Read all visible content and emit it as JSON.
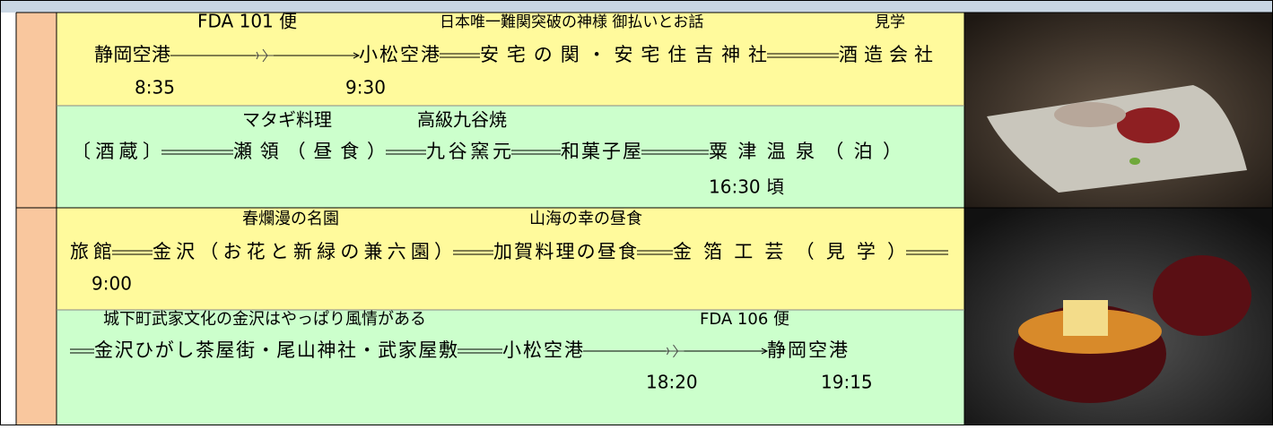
{
  "days": [
    {
      "sections": [
        {
          "notes": [
            "FDA 101 便",
            "日本唯一難関突破の神様 御払いとお話",
            "見学"
          ],
          "route": [
            "静岡空港",
            "小松空港",
            "安宅の関・安宅住吉神社",
            "酒造会社"
          ],
          "times": [
            "8:35",
            "9:30"
          ]
        },
        {
          "notes": [
            "マタギ料理",
            "高級九谷焼"
          ],
          "route": [
            "〔酒蔵〕",
            "瀬領（昼食）",
            "九谷窯元",
            "和菓子屋",
            "粟津温泉（泊）"
          ],
          "times": [
            "16:30 頃"
          ]
        }
      ]
    },
    {
      "sections": [
        {
          "notes": [
            "春爛漫の名園",
            "山海の幸の昼食"
          ],
          "route": [
            "旅館",
            "金沢（お花と新緑の兼六園）",
            "加賀料理の昼食",
            "金箔工芸（見学）"
          ],
          "times": [
            "9:00"
          ]
        },
        {
          "notes": [
            "城下町武家文化の金沢はやっぱり風情がある",
            "FDA 106 便"
          ],
          "route": [
            "金沢ひがし茶屋街・尾山神社・武家屋敷",
            "小松空港",
            "静岡空港"
          ],
          "times": [
            "18:20",
            "19:15"
          ]
        }
      ]
    }
  ]
}
